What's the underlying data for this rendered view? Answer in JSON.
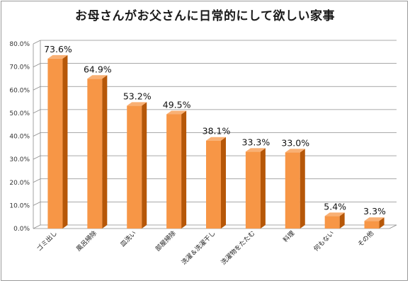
{
  "chart_data": {
    "type": "bar",
    "title": "お母さんがお父さんに日常的にして欲しい家事",
    "categories": [
      "ゴミ出し",
      "風呂掃除",
      "皿洗い",
      "部屋掃除",
      "洗濯＆洗濯干し",
      "洗濯物をたたむ",
      "料理",
      "何もない",
      "その他"
    ],
    "values": [
      73.6,
      64.9,
      53.2,
      49.5,
      38.1,
      33.3,
      33.0,
      5.4,
      3.3
    ],
    "data_labels": [
      "73.6%",
      "64.9%",
      "53.2%",
      "49.5%",
      "38.1%",
      "33.3%",
      "33.0%",
      "5.4%",
      "3.3%"
    ],
    "yticks": [
      "0.0%",
      "10.0%",
      "20.0%",
      "30.0%",
      "40.0%",
      "50.0%",
      "60.0%",
      "70.0%",
      "80.0%"
    ],
    "ylim": [
      0,
      80
    ],
    "grid": true,
    "xlabel": "",
    "ylabel": "",
    "colors": {
      "bar_front": "#F79646",
      "bar_side": "#B65708",
      "bar_top": "#F9B074",
      "grid": "#8c8c8c"
    }
  }
}
